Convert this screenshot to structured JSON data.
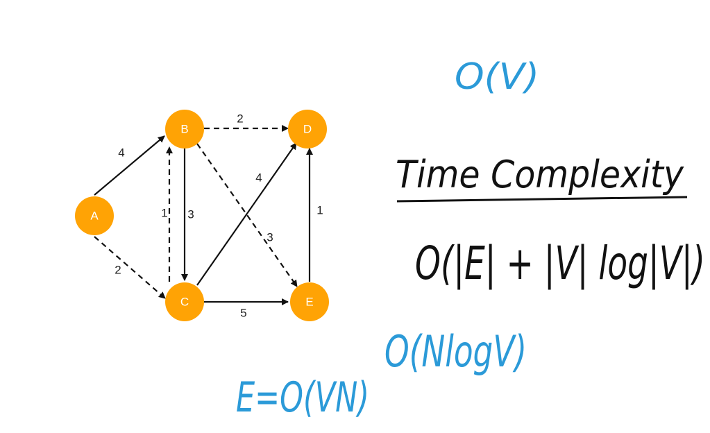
{
  "graph": {
    "nodes": [
      {
        "id": "A",
        "label": "A"
      },
      {
        "id": "B",
        "label": "B"
      },
      {
        "id": "C",
        "label": "C"
      },
      {
        "id": "D",
        "label": "D"
      },
      {
        "id": "E",
        "label": "E"
      }
    ],
    "edges": [
      {
        "from": "A",
        "to": "B",
        "weight": "4",
        "style": "solid"
      },
      {
        "from": "A",
        "to": "C",
        "weight": "2",
        "style": "dashed"
      },
      {
        "from": "B",
        "to": "D",
        "weight": "2",
        "style": "dashed"
      },
      {
        "from": "C",
        "to": "B",
        "weight": "1",
        "style": "dashed"
      },
      {
        "from": "B",
        "to": "C",
        "weight": "3",
        "style": "solid"
      },
      {
        "from": "C",
        "to": "D",
        "weight": "4",
        "style": "solid"
      },
      {
        "from": "B",
        "to": "E",
        "weight": "3",
        "style": "dashed"
      },
      {
        "from": "C",
        "to": "E",
        "weight": "5",
        "style": "solid"
      },
      {
        "from": "E",
        "to": "D",
        "weight": "1",
        "style": "solid"
      }
    ]
  },
  "annotations": {
    "heading": "Time Complexity",
    "formula": "O(|E| + |V| log|V|)",
    "note_ov": "O(V)",
    "note_nlogv": "O(NlogV)",
    "note_evn": "E=O(VN)"
  },
  "colors": {
    "node": "#ffa305",
    "ink_black": "#111111",
    "ink_blue": "#2b9ad8"
  }
}
